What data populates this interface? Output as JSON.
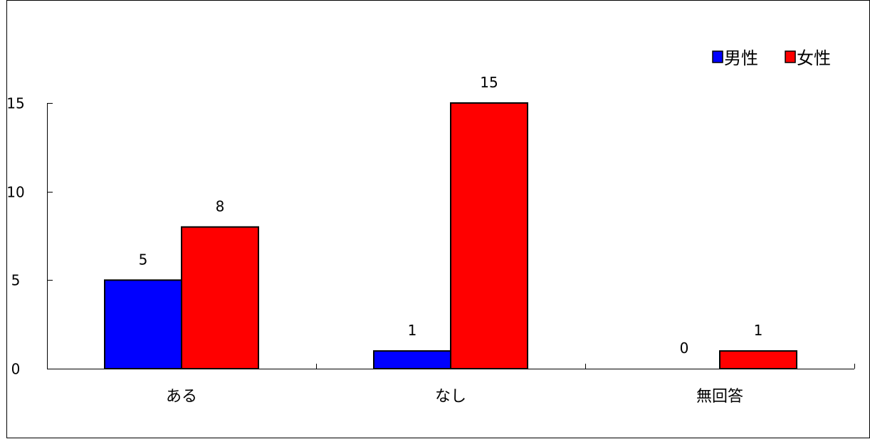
{
  "chart_data": {
    "type": "bar",
    "categories": [
      "ある",
      "なし",
      "無回答"
    ],
    "series": [
      {
        "name": "男性",
        "values": [
          5,
          1,
          0
        ],
        "color": "#0000ff"
      },
      {
        "name": "女性",
        "values": [
          8,
          15,
          1
        ],
        "color": "#ff0000"
      }
    ],
    "ylim": [
      0,
      15
    ],
    "yticks": [
      "0",
      "5",
      "10",
      "15"
    ],
    "ytick_values": [
      0,
      5,
      10,
      15
    ],
    "data_labels": [
      [
        "5",
        "1",
        "0"
      ],
      [
        "8",
        "15",
        "1"
      ]
    ],
    "legend_position": "top-right",
    "grid": false,
    "title": "",
    "xlabel": "",
    "ylabel": ""
  }
}
